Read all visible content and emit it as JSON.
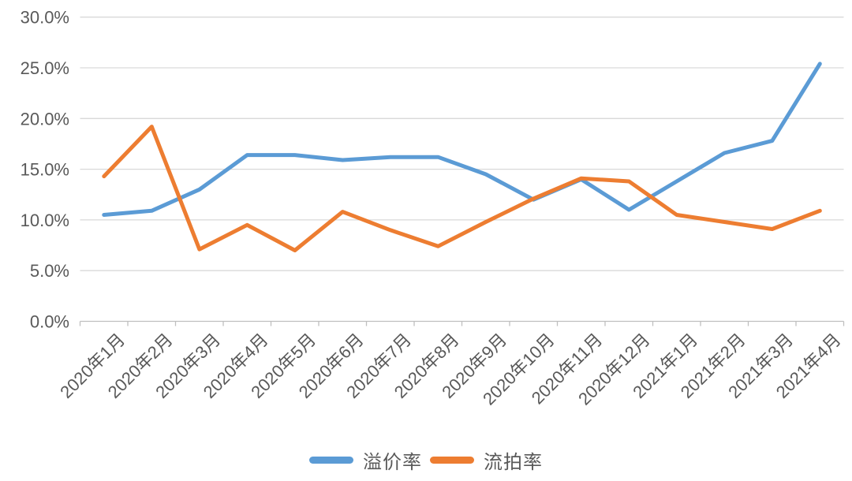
{
  "chart_data": {
    "type": "line",
    "categories": [
      "2020年1月",
      "2020年2月",
      "2020年3月",
      "2020年4月",
      "2020年5月",
      "2020年6月",
      "2020年7月",
      "2020年8月",
      "2020年9月",
      "2020年10月",
      "2020年11月",
      "2020年12月",
      "2021年1月",
      "2021年2月",
      "2021年3月",
      "2021年4月"
    ],
    "series": [
      {
        "name": "溢价率",
        "color": "#5B9BD5",
        "values": [
          10.5,
          10.9,
          13.0,
          16.4,
          16.4,
          15.9,
          16.2,
          16.2,
          14.5,
          12.0,
          14.0,
          11.0,
          13.8,
          16.6,
          17.8,
          25.4
        ]
      },
      {
        "name": "流拍率",
        "color": "#ED7D31",
        "values": [
          14.3,
          19.2,
          7.1,
          9.5,
          7.0,
          10.8,
          9.0,
          7.4,
          9.8,
          12.1,
          14.1,
          13.8,
          10.5,
          9.8,
          9.1,
          10.9
        ]
      }
    ],
    "title": "",
    "xlabel": "",
    "ylabel": "",
    "ylim": [
      0,
      30
    ],
    "y_tick_step": 5,
    "y_tick_labels": [
      "0.0%",
      "5.0%",
      "10.0%",
      "15.0%",
      "20.0%",
      "25.0%",
      "30.0%"
    ],
    "grid": "horizontal",
    "legend_position": "bottom"
  },
  "style": {
    "background": "#FFFFFF",
    "gridline_color": "#D9D9D9",
    "axis_color": "#BFBFBF",
    "label_color": "#595959"
  }
}
